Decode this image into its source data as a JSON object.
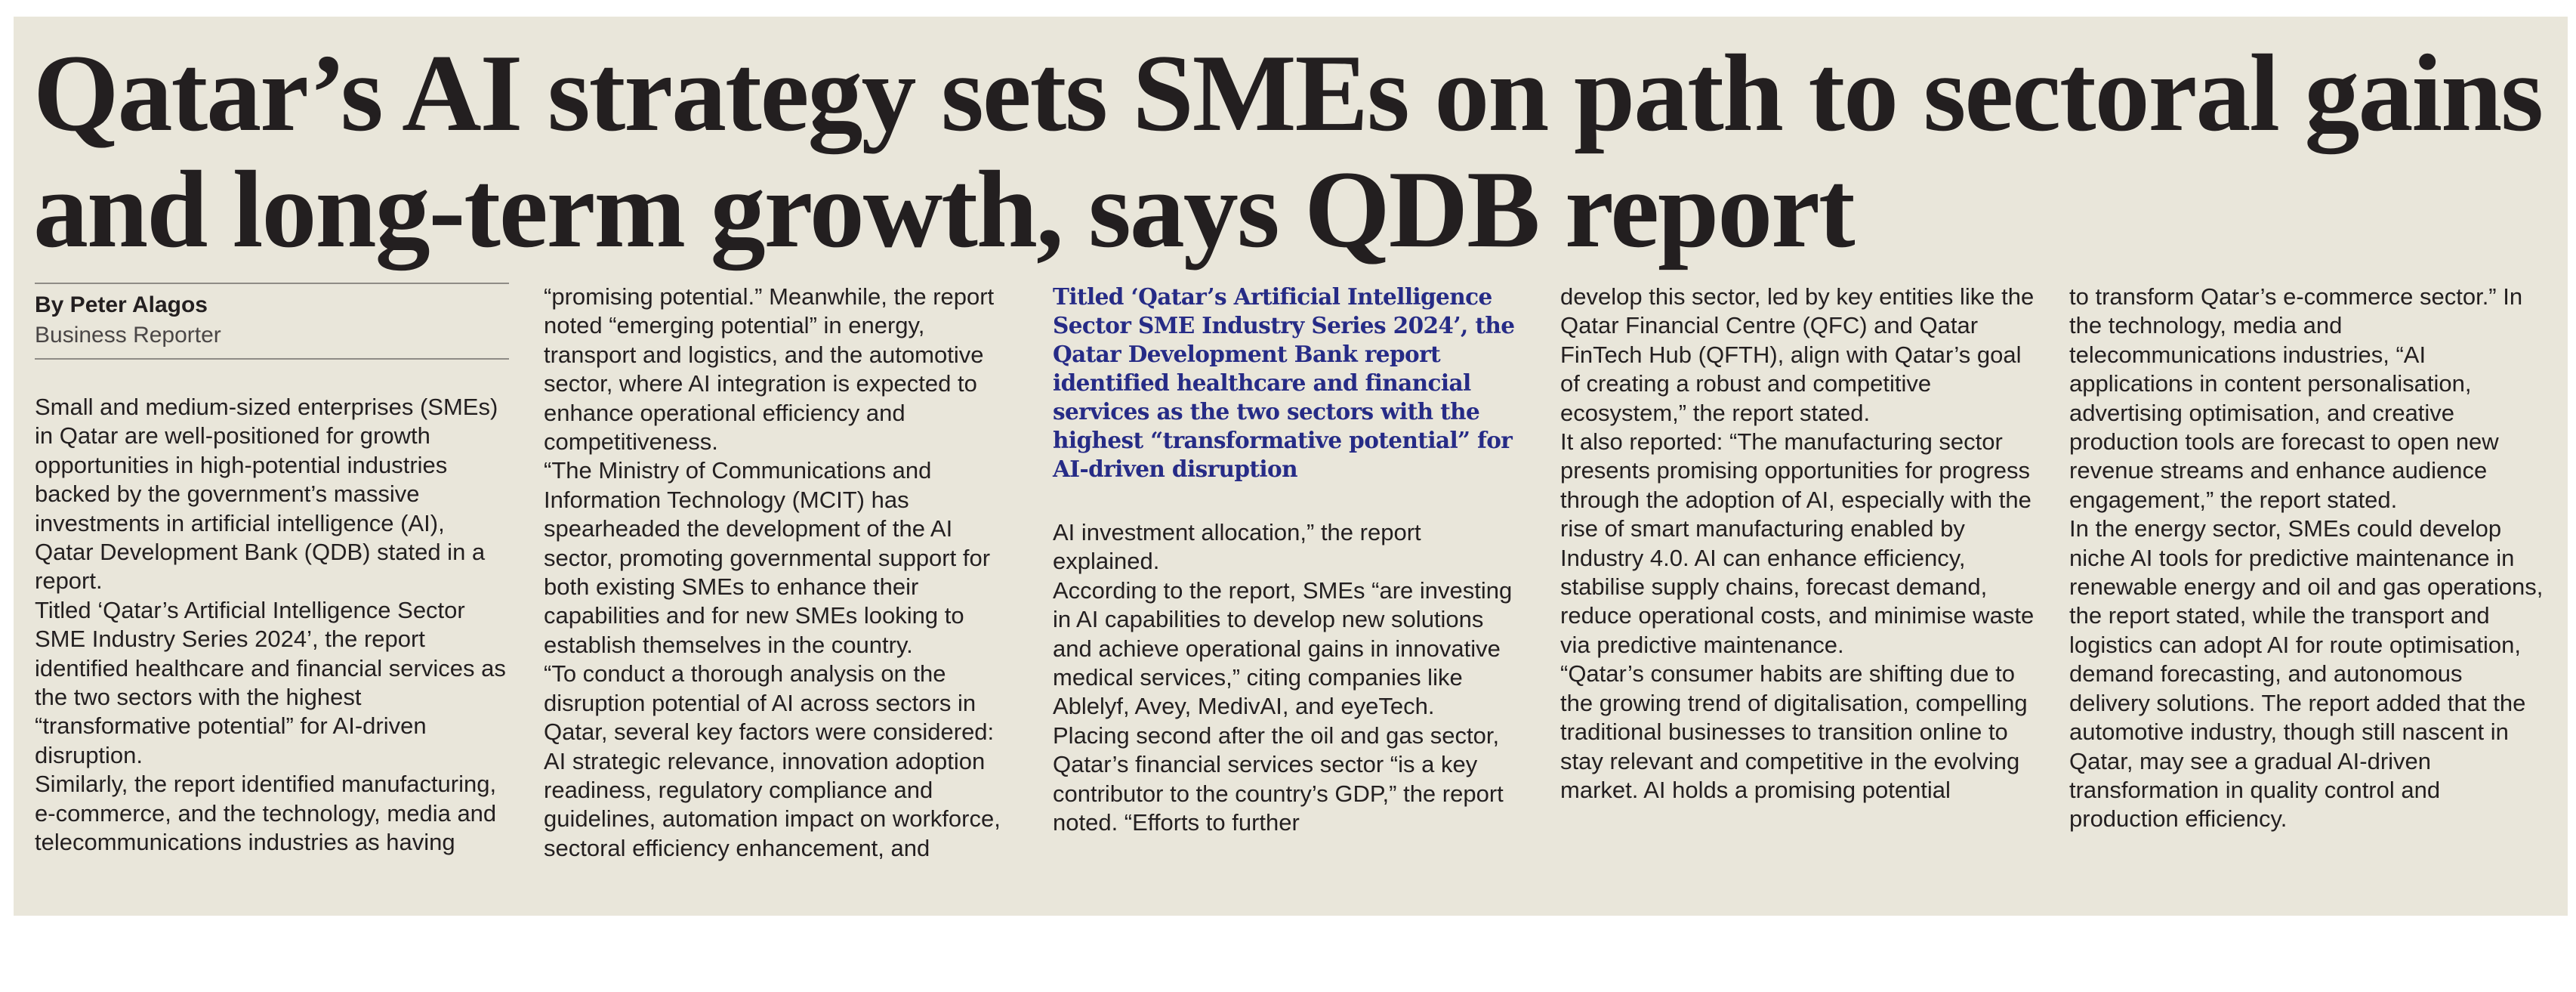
{
  "headline": "Qatar’s AI strategy sets SMEs on path to sectoral gains and long-term growth, says QDB report",
  "columns": [
    {
      "byline": {
        "name": "By Peter Alagos",
        "role": "Business Reporter"
      },
      "paragraphs": [
        "Small and medium-sized enterprises (SMEs) in Qatar are well-positioned for growth opportunities in high-potential industries backed by the government’s massive investments in artificial intelligence (AI), Qatar Development Bank (QDB) stated in a report.",
        "Titled ‘Qatar’s Artificial Intelligence Sector SME Industry Series 2024’, the report identified healthcare and financial services as the two sectors with the highest “transformative potential” for AI-driven disruption.",
        "Similarly, the report identified manufacturing, e-commerce, and the technology, media and telecommunications industries as having"
      ]
    },
    {
      "paragraphs": [
        "“promising potential.” Meanwhile, the report noted “emerging potential” in energy, transport and logistics, and the automotive sector, where AI integration is expected to enhance operational efficiency and competitiveness.",
        "“The Ministry of Communications and Information Technology (MCIT) has spearheaded the development of the AI sector, promoting governmental support for both existing SMEs to enhance their capabilities and for new SMEs looking to establish themselves in the country.",
        "“To conduct a thorough analysis on the disruption potential of AI across sectors in Qatar, several key factors were considered: AI strategic relevance, innovation adoption readiness, regulatory compliance and guidelines, automation impact on workforce, sectoral efficiency enhancement, and"
      ]
    },
    {
      "pull_quote": "Titled ‘Qatar’s Artificial Intelligence Sector SME Industry Series 2024’, the Qatar Development Bank report identified healthcare and financial services as the two sectors with the highest “transformative potential” for AI-driven disruption",
      "paragraphs": [
        "AI investment allocation,” the report explained.",
        "According to the report, SMEs “are investing in AI capabilities to develop new solutions and achieve operational gains in innovative medical services,” citing companies like Ablelyf, Avey, MedivAI, and eyeTech.",
        "Placing second after the oil and gas sector, Qatar’s financial services sector “is a key contributor to the country’s GDP,” the report noted. “Efforts to further"
      ]
    },
    {
      "paragraphs": [
        "develop this sector, led by key entities like the Qatar Financial Centre (QFC) and Qatar FinTech Hub (QFTH), align with Qatar’s goal of creating a robust and competitive ecosystem,” the report stated.",
        "It also reported: “The manufacturing sector presents promising opportunities for progress through the adoption of AI, especially with the rise of smart manufacturing enabled by Industry 4.0. AI can enhance efficiency, stabilise supply chains, forecast demand, reduce operational costs, and minimise waste via predictive maintenance.",
        "“Qatar’s consumer habits are shifting due to the growing trend of digitalisation, compelling traditional businesses to transition online to stay relevant and competitive in the evolving market. AI holds a promising potential"
      ]
    },
    {
      "paragraphs": [
        "to transform Qatar’s e-commerce sector.” In the technology, media and telecommunications industries, “AI applications in content personalisation, advertising optimisation, and creative production tools are forecast to open new revenue streams and enhance audience engagement,” the report stated.",
        "In the energy sector, SMEs could develop niche AI tools for predictive maintenance in renewable energy and oil and gas operations, the report stated, while the transport and logistics can adopt AI for route optimisation, demand forecasting, and autonomous delivery solutions. The report added that the automotive industry, though still nascent in Qatar, may see a gradual AI-driven transformation in quality control and production efficiency."
      ]
    }
  ]
}
